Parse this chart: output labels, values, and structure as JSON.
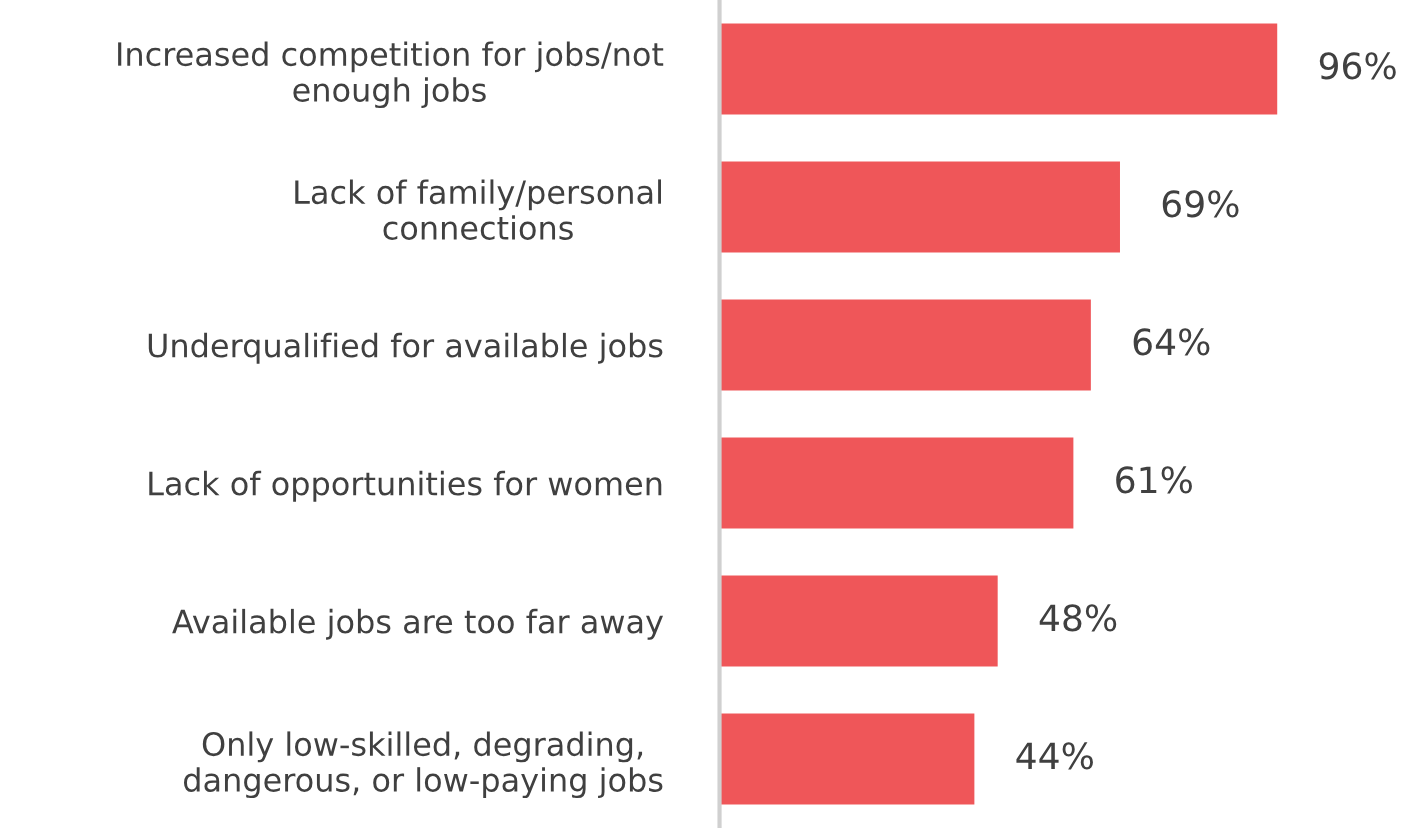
{
  "chart_data": {
    "type": "bar",
    "orientation": "horizontal",
    "categories": [
      "Increased competition for jobs/not\nenough jobs",
      "Lack of family/personal\nconnections",
      "Underqualified for available jobs",
      "Lack of opportunities for women",
      "Available jobs are too far away",
      "Only low-skilled, degrading,\ndangerous, or low-paying jobs"
    ],
    "values": [
      96,
      69,
      64,
      61,
      48,
      44
    ],
    "value_labels": [
      "96%",
      "69%",
      "64%",
      "61%",
      "48%",
      "44%"
    ],
    "color": "#ef5659"
  }
}
